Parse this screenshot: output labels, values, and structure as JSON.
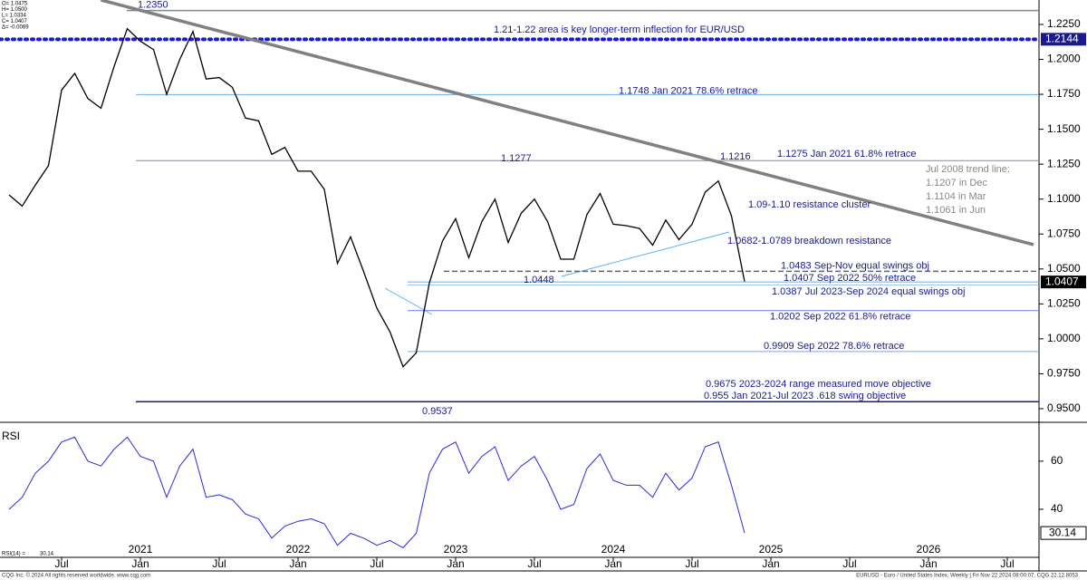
{
  "chart_data": [
    {
      "type": "line",
      "name": "EURUSD",
      "color": "#000000",
      "header": [
        "O= 1.0475",
        "H= 1.0500",
        "L= 1.0334",
        "C= 1.0407",
        "Δ= -0.0069"
      ],
      "x": [
        "2020-03",
        "2020-04",
        "2020-05",
        "2020-06",
        "2020-07",
        "2020-08",
        "2020-09",
        "2020-10",
        "2020-11",
        "2020-12",
        "2021-01",
        "2021-02",
        "2021-03",
        "2021-04",
        "2021-05",
        "2021-06",
        "2021-07",
        "2021-08",
        "2021-09",
        "2021-10",
        "2021-11",
        "2021-12",
        "2022-01",
        "2022-02",
        "2022-03",
        "2022-04",
        "2022-05",
        "2022-06",
        "2022-07",
        "2022-08",
        "2022-09",
        "2022-10",
        "2022-11",
        "2022-12",
        "2023-01",
        "2023-02",
        "2023-03",
        "2023-04",
        "2023-05",
        "2023-06",
        "2023-07",
        "2023-08",
        "2023-09",
        "2023-10",
        "2023-11",
        "2023-12",
        "2024-01",
        "2024-02",
        "2024-03",
        "2024-04",
        "2024-05",
        "2024-06",
        "2024-07",
        "2024-08",
        "2024-09",
        "2024-10",
        "2024-11"
      ],
      "values": [
        1.103,
        1.095,
        1.11,
        1.124,
        1.178,
        1.19,
        1.172,
        1.165,
        1.195,
        1.222,
        1.213,
        1.207,
        1.175,
        1.2,
        1.22,
        1.186,
        1.187,
        1.18,
        1.158,
        1.156,
        1.132,
        1.137,
        1.12,
        1.12,
        1.107,
        1.054,
        1.073,
        1.048,
        1.022,
        1.005,
        0.98,
        0.99,
        1.04,
        1.07,
        1.086,
        1.058,
        1.084,
        1.1,
        1.069,
        1.09,
        1.1,
        1.084,
        1.057,
        1.057,
        1.089,
        1.104,
        1.082,
        1.081,
        1.079,
        1.067,
        1.085,
        1.071,
        1.082,
        1.105,
        1.113,
        1.088,
        1.041
      ],
      "xlim": [
        "2020-03",
        "2026-09"
      ],
      "xticks": [
        {
          "value": "2020-07",
          "label": "Jul"
        },
        {
          "value": "2021-01",
          "label": "Jan"
        },
        {
          "value": "2021-07",
          "label": "Jul"
        },
        {
          "value": "2022-01",
          "label": "Jan"
        },
        {
          "value": "2022-07",
          "label": "Jul"
        },
        {
          "value": "2023-01",
          "label": "Jan"
        },
        {
          "value": "2023-07",
          "label": "Jul"
        },
        {
          "value": "2024-01",
          "label": "Jan"
        },
        {
          "value": "2024-07",
          "label": "Jul"
        },
        {
          "value": "2025-01",
          "label": "Jan"
        },
        {
          "value": "2025-07",
          "label": "Jul"
        },
        {
          "value": "2026-01",
          "label": "Jan"
        },
        {
          "value": "2026-07",
          "label": "Jul"
        }
      ],
      "year_labels": [
        {
          "value": "2021-01",
          "label": "2021"
        },
        {
          "value": "2022-01",
          "label": "2022"
        },
        {
          "value": "2023-01",
          "label": "2023"
        },
        {
          "value": "2024-01",
          "label": "2024"
        },
        {
          "value": "2025-01",
          "label": "2025"
        },
        {
          "value": "2026-01",
          "label": "2026"
        }
      ],
      "ylim": [
        0.9409,
        1.2425
      ],
      "yticks": [
        {
          "value": 0.95,
          "label": "0.9500"
        },
        {
          "value": 0.975,
          "label": "0.9750"
        },
        {
          "value": 1.0,
          "label": "1.0000"
        },
        {
          "value": 1.025,
          "label": "1.0250"
        },
        {
          "value": 1.05,
          "label": "1.0500"
        },
        {
          "value": 1.075,
          "label": "1.0750"
        },
        {
          "value": 1.1,
          "label": "1.1000"
        },
        {
          "value": 1.125,
          "label": "1.1250"
        },
        {
          "value": 1.15,
          "label": "1.1500"
        },
        {
          "value": 1.175,
          "label": "1.1750"
        },
        {
          "value": 1.2,
          "label": "1.2000"
        },
        {
          "value": 1.225,
          "label": "1.2250"
        }
      ],
      "grid": false,
      "markers": [
        {
          "value": 1.2144,
          "color": "#1a1a8c"
        },
        {
          "value": 1.0407,
          "color": "#000000"
        }
      ],
      "levels": [
        {
          "value": 1.2144,
          "label": "1.21-1.22 area is key longer-term inflection for EUR/USD",
          "color": "#1a1acc"
        },
        {
          "value": 1.235,
          "label": "1.2350",
          "color": "#888888"
        },
        {
          "value": 1.1748,
          "label": "1.1748 Jan 2021 78.6% retrace",
          "color": "#6aaee8"
        },
        {
          "value": 1.1275,
          "label": "1.1275 Jan 2021 61.8% retrace",
          "color": "#7a8ab8"
        },
        {
          "value": 1.0483,
          "label": "1.0483 Sep-Nov equal swings obj",
          "color": "#666666"
        },
        {
          "value": 1.0407,
          "label": "1.0407 Sep 2022 50% retrace",
          "color": "#6aaee8"
        },
        {
          "value": 1.0387,
          "label": "1.0387 Jul 2023-Sep 2024 equal swings obj",
          "color": "#6aaee8"
        },
        {
          "value": 1.0202,
          "label": "1.0202 Sep 2022 61.8% retrace",
          "color": "#6a7ae8"
        },
        {
          "value": 0.9909,
          "label": "0.9909 Sep 2022 78.6% retrace",
          "color": "#6aaee8"
        },
        {
          "value": 0.9675,
          "label": "0.9675 2023-2024 range measured move objective",
          "color": "#1a1a8c"
        },
        {
          "value": 0.955,
          "label": "0.955 Jan 2021-Jul 2023 .618 swing objective",
          "color": "#1a1a8c"
        }
      ],
      "trend_line": {
        "x": [
          "2020-10",
          "2026-09"
        ],
        "values": [
          1.2425,
          1.0674
        ],
        "color": "#808080"
      },
      "annotations": [
        "1.1277",
        "1.1216",
        "1.0448",
        "0.9537",
        "Jul 2008 trend line:",
        "1.1207 in Dec",
        "1.1104 in Mar",
        "1.1061 in Jun",
        "1.09-1.10 resistance cluster",
        "1.0682-1.0789 breakdown resistance"
      ]
    },
    {
      "type": "line",
      "name": "RSI",
      "label": "RSI(14) =",
      "color": "#2a2ad0",
      "values": [
        40,
        45,
        55,
        60,
        68,
        70,
        60,
        58,
        65,
        70,
        62,
        60,
        45,
        58,
        65,
        45,
        46,
        44,
        38,
        36,
        28,
        33,
        35,
        36,
        34,
        25,
        30,
        28,
        25,
        27,
        24,
        30,
        55,
        65,
        68,
        55,
        62,
        66,
        52,
        58,
        62,
        52,
        40,
        42,
        57,
        63,
        52,
        50,
        50,
        45,
        55,
        48,
        53,
        66,
        68,
        50,
        30.14
      ],
      "ylim": [
        20,
        75.8
      ],
      "yticks": [
        40,
        60
      ]
    },
    {
      "type": "footer",
      "left": "CQG Inc. © 2024 All rights reserved worldwide. www.cqg.com",
      "right": "EURUSD - Euro / United States Index, Weekly | Fri Nov 22 2024 08:00:07, CQG 22.12.8053"
    }
  ]
}
